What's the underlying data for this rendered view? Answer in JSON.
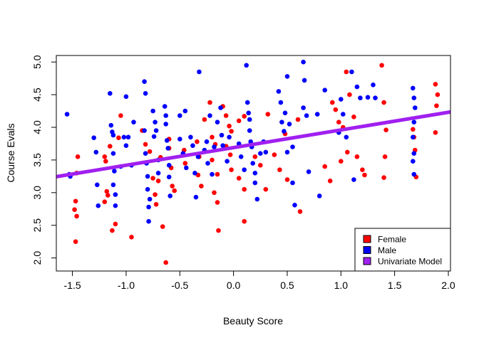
{
  "colors": {
    "female": "#ff0000",
    "male": "#0000ff",
    "model": "#a020f0",
    "axis": "#000000",
    "background": "#ffffff"
  },
  "chart_data": {
    "type": "scatter",
    "title": "",
    "xlabel": "Beauty Score",
    "ylabel": "Course Evals",
    "xlim": [
      -1.65,
      2.02
    ],
    "ylim": [
      1.8,
      5.1
    ],
    "xticks": [
      -1.5,
      -1.0,
      -0.5,
      0.0,
      0.5,
      1.0,
      1.5,
      2.0
    ],
    "xtick_labels": [
      "-1.5",
      "-1.0",
      "-0.5",
      "0.0",
      "0.5",
      "1.0",
      "1.5",
      "2.0"
    ],
    "yticks": [
      2.0,
      2.5,
      3.0,
      3.5,
      4.0,
      4.5,
      5.0
    ],
    "ytick_labels": [
      "2.0",
      "2.5",
      "3.0",
      "3.5",
      "4.0",
      "4.5",
      "5.0"
    ],
    "grid": false,
    "legend_position": "bottom-right",
    "legend": [
      {
        "label": "Female",
        "color": "#ff0000"
      },
      {
        "label": "Male",
        "color": "#0000ff"
      },
      {
        "label": "Univariate Model",
        "color": "#a020f0"
      }
    ],
    "regression_line": {
      "name": "Univariate Model",
      "intercept": 3.69,
      "slope": 0.27
    },
    "series": [
      {
        "name": "Female",
        "color": "#ff0000",
        "points": [
          [
            -1.45,
            3.55
          ],
          [
            -1.46,
            3.3
          ],
          [
            -1.47,
            2.87
          ],
          [
            -1.48,
            2.74
          ],
          [
            -1.46,
            2.64
          ],
          [
            -1.47,
            2.25
          ],
          [
            -1.15,
            3.71
          ],
          [
            -1.2,
            3.55
          ],
          [
            -1.19,
            3.48
          ],
          [
            -1.18,
            3.02
          ],
          [
            -1.17,
            2.96
          ],
          [
            -1.2,
            2.86
          ],
          [
            -1.1,
            2.52
          ],
          [
            -1.13,
            2.42
          ],
          [
            -1.05,
            4.18
          ],
          [
            -1.07,
            3.84
          ],
          [
            -0.95,
            2.32
          ],
          [
            -0.85,
            3.95
          ],
          [
            -0.82,
            3.74
          ],
          [
            -0.78,
            3.63
          ],
          [
            -0.75,
            3.22
          ],
          [
            -0.73,
            2.97
          ],
          [
            -0.72,
            2.82
          ],
          [
            -0.68,
            3.54
          ],
          [
            -0.7,
            3.18
          ],
          [
            -0.66,
            2.48
          ],
          [
            -0.63,
            1.93
          ],
          [
            -0.6,
            3.82
          ],
          [
            -0.6,
            3.68
          ],
          [
            -0.58,
            3.38
          ],
          [
            -0.57,
            3.1
          ],
          [
            -0.55,
            3.03
          ],
          [
            -0.46,
            3.65
          ],
          [
            -0.45,
            3.45
          ],
          [
            -0.34,
            3.78
          ],
          [
            -0.32,
            3.55
          ],
          [
            -0.33,
            3.27
          ],
          [
            -0.3,
            3.1
          ],
          [
            -0.27,
            4.12
          ],
          [
            -0.22,
            4.38
          ],
          [
            -0.2,
            3.85
          ],
          [
            -0.17,
            3.74
          ],
          [
            -0.2,
            3.5
          ],
          [
            -0.15,
            3.28
          ],
          [
            -0.18,
            3.0
          ],
          [
            -0.15,
            2.85
          ],
          [
            -0.14,
            2.42
          ],
          [
            -0.1,
            4.32
          ],
          [
            -0.07,
            4.18
          ],
          [
            -0.04,
            4.02
          ],
          [
            -0.02,
            3.94
          ],
          [
            -0.07,
            3.71
          ],
          [
            -0.03,
            3.58
          ],
          [
            -0.02,
            3.35
          ],
          [
            0.05,
            4.1
          ],
          [
            0.1,
            4.17
          ],
          [
            0.05,
            3.22
          ],
          [
            0.1,
            3.05
          ],
          [
            0.1,
            2.56
          ],
          [
            0.2,
            3.55
          ],
          [
            0.25,
            3.42
          ],
          [
            0.3,
            3.05
          ],
          [
            0.32,
            4.2
          ],
          [
            0.38,
            3.58
          ],
          [
            0.43,
            3.35
          ],
          [
            0.48,
            3.9
          ],
          [
            0.5,
            3.2
          ],
          [
            0.62,
            2.71
          ],
          [
            0.6,
            4.12
          ],
          [
            0.85,
            3.4
          ],
          [
            0.9,
            3.18
          ],
          [
            0.92,
            4.38
          ],
          [
            0.95,
            4.27
          ],
          [
            0.98,
            4.08
          ],
          [
            1.02,
            4.0
          ],
          [
            1.06,
            3.62
          ],
          [
            1.0,
            3.48
          ],
          [
            1.05,
            4.85
          ],
          [
            1.08,
            4.5
          ],
          [
            1.12,
            4.16
          ],
          [
            1.15,
            3.55
          ],
          [
            1.2,
            3.35
          ],
          [
            1.22,
            3.27
          ],
          [
            1.38,
            4.95
          ],
          [
            1.4,
            4.38
          ],
          [
            1.42,
            3.96
          ],
          [
            1.41,
            3.55
          ],
          [
            1.4,
            3.23
          ],
          [
            1.67,
            3.97
          ],
          [
            1.68,
            3.85
          ],
          [
            1.69,
            3.65
          ],
          [
            1.7,
            3.24
          ],
          [
            1.88,
            4.66
          ],
          [
            1.9,
            4.5
          ],
          [
            1.89,
            4.33
          ],
          [
            1.88,
            3.92
          ]
        ]
      },
      {
        "name": "Male",
        "color": "#0000ff",
        "points": [
          [
            -1.55,
            4.2
          ],
          [
            -1.53,
            3.28
          ],
          [
            -1.52,
            3.25
          ],
          [
            -1.3,
            3.84
          ],
          [
            -1.28,
            3.62
          ],
          [
            -1.27,
            3.12
          ],
          [
            -1.26,
            2.8
          ],
          [
            -1.15,
            4.52
          ],
          [
            -1.14,
            4.03
          ],
          [
            -1.13,
            3.93
          ],
          [
            -1.12,
            3.88
          ],
          [
            -1.12,
            3.6
          ],
          [
            -1.11,
            3.33
          ],
          [
            -1.12,
            3.12
          ],
          [
            -1.1,
            2.97
          ],
          [
            -1.1,
            2.8
          ],
          [
            -1.05,
            3.4
          ],
          [
            -1.02,
            3.85
          ],
          [
            -1.0,
            4.47
          ],
          [
            -1.0,
            3.72
          ],
          [
            -0.98,
            3.85
          ],
          [
            -0.95,
            3.42
          ],
          [
            -0.93,
            4.08
          ],
          [
            -0.83,
            4.7
          ],
          [
            -0.82,
            4.52
          ],
          [
            -0.83,
            3.95
          ],
          [
            -0.82,
            3.6
          ],
          [
            -0.81,
            3.45
          ],
          [
            -0.8,
            3.25
          ],
          [
            -0.8,
            3.05
          ],
          [
            -0.79,
            2.78
          ],
          [
            -0.79,
            2.56
          ],
          [
            -0.78,
            2.9
          ],
          [
            -0.75,
            4.25
          ],
          [
            -0.74,
            3.86
          ],
          [
            -0.73,
            4.08
          ],
          [
            -0.72,
            3.95
          ],
          [
            -0.7,
            3.5
          ],
          [
            -0.7,
            3.3
          ],
          [
            -0.64,
            4.32
          ],
          [
            -0.63,
            4.18
          ],
          [
            -0.63,
            4.05
          ],
          [
            -0.62,
            3.8
          ],
          [
            -0.61,
            3.68
          ],
          [
            -0.6,
            3.42
          ],
          [
            -0.6,
            3.24
          ],
          [
            -0.59,
            2.95
          ],
          [
            -0.5,
            4.18
          ],
          [
            -0.5,
            3.82
          ],
          [
            -0.47,
            3.6
          ],
          [
            -0.45,
            4.25
          ],
          [
            -0.44,
            3.38
          ],
          [
            -0.4,
            3.85
          ],
          [
            -0.38,
            3.72
          ],
          [
            -0.36,
            3.3
          ],
          [
            -0.33,
            3.55
          ],
          [
            -0.35,
            2.93
          ],
          [
            -0.32,
            4.85
          ],
          [
            -0.27,
            3.65
          ],
          [
            -0.25,
            3.78
          ],
          [
            -0.24,
            3.45
          ],
          [
            -0.22,
            4.18
          ],
          [
            -0.2,
            3.28
          ],
          [
            -0.18,
            3.7
          ],
          [
            -0.15,
            4.08
          ],
          [
            -0.12,
            4.3
          ],
          [
            -0.11,
            3.88
          ],
          [
            -0.1,
            3.72
          ],
          [
            -0.06,
            3.48
          ],
          [
            -0.04,
            3.85
          ],
          [
            0.05,
            3.75
          ],
          [
            0.07,
            3.55
          ],
          [
            0.1,
            3.35
          ],
          [
            0.12,
            4.95
          ],
          [
            0.13,
            4.38
          ],
          [
            0.14,
            4.22
          ],
          [
            0.15,
            4.12
          ],
          [
            0.15,
            3.95
          ],
          [
            0.16,
            3.78
          ],
          [
            0.17,
            3.7
          ],
          [
            0.18,
            3.45
          ],
          [
            0.2,
            3.3
          ],
          [
            0.2,
            3.15
          ],
          [
            0.22,
            2.9
          ],
          [
            0.25,
            3.6
          ],
          [
            0.28,
            3.78
          ],
          [
            0.3,
            3.62
          ],
          [
            0.42,
            4.55
          ],
          [
            0.44,
            4.38
          ],
          [
            0.45,
            4.08
          ],
          [
            0.47,
            3.94
          ],
          [
            0.48,
            4.22
          ],
          [
            0.5,
            4.78
          ],
          [
            0.5,
            3.62
          ],
          [
            0.52,
            4.05
          ],
          [
            0.55,
            3.7
          ],
          [
            0.55,
            3.15
          ],
          [
            0.57,
            2.81
          ],
          [
            0.65,
            5.0
          ],
          [
            0.66,
            4.72
          ],
          [
            0.65,
            4.3
          ],
          [
            0.68,
            4.18
          ],
          [
            0.7,
            3.32
          ],
          [
            0.78,
            4.2
          ],
          [
            0.8,
            2.95
          ],
          [
            0.85,
            4.57
          ],
          [
            0.98,
            3.92
          ],
          [
            1.0,
            4.43
          ],
          [
            1.02,
            4.2
          ],
          [
            1.05,
            3.85
          ],
          [
            1.1,
            4.85
          ],
          [
            1.15,
            4.62
          ],
          [
            1.12,
            3.2
          ],
          [
            1.18,
            4.45
          ],
          [
            1.25,
            4.46
          ],
          [
            1.3,
            4.65
          ],
          [
            1.32,
            4.45
          ],
          [
            1.67,
            4.6
          ],
          [
            1.68,
            4.45
          ],
          [
            1.69,
            4.3
          ],
          [
            1.68,
            4.08
          ],
          [
            1.67,
            3.85
          ],
          [
            1.68,
            3.6
          ],
          [
            1.67,
            3.48
          ],
          [
            1.68,
            3.28
          ]
        ]
      }
    ]
  }
}
